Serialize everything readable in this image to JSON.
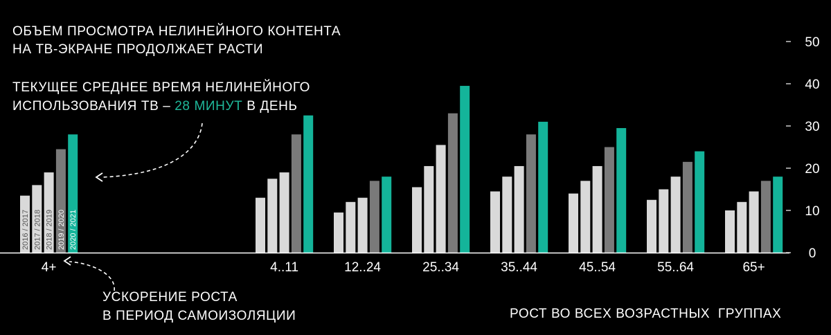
{
  "headline": {
    "line1": "ОБЪЕМ ПРОСМОТРА НЕЛИНЕЙНОГО КОНТЕНТА",
    "line2": "НА ТВ-ЭКРАНЕ ПРОДОЛЖАЕТ РАСТИ"
  },
  "subhead": {
    "line1": "ТЕКУЩЕЕ СРЕДНЕЕ ВРЕМЯ НЕЛИНЕЙНОГО",
    "line2_prefix": "ИСПОЛЬЗОВАНИЯ ТВ – ",
    "line2_highlight": "28 МИНУТ",
    "line2_suffix": " В ДЕНЬ"
  },
  "notes": {
    "bottom_line1": "УСКОРЕНИЕ РОСТА",
    "bottom_line2": "В ПЕРИОД САМОИЗОЛЯЦИИ",
    "right": "РОСТ ВО ВСЕХ ВОЗРАСТНЫХ  ГРУППАХ"
  },
  "colors": {
    "background": "#000000",
    "bar_light": "#d9d9d9",
    "bar_dark": "#7a7a7a",
    "bar_accent": "#14b49a",
    "axis": "#ffffff",
    "text": "#ffffff",
    "accent_text": "#1fb89a"
  },
  "chart_data": {
    "type": "bar",
    "categories": [
      "4+",
      "4..11",
      "12..24",
      "25..34",
      "35..44",
      "45..54",
      "55..64",
      "65+"
    ],
    "series": [
      {
        "name": "2016 / 2017",
        "values": [
          13.5,
          13,
          9.5,
          15.5,
          14.5,
          14,
          12.5,
          10
        ]
      },
      {
        "name": "2017 / 2018",
        "values": [
          16,
          17.5,
          12,
          20.5,
          18,
          17,
          15,
          12
        ]
      },
      {
        "name": "2018 / 2019",
        "values": [
          19,
          19,
          13,
          25.5,
          20.5,
          20.5,
          18,
          14.5
        ]
      },
      {
        "name": "2019 / 2020",
        "values": [
          24.5,
          28,
          17,
          33,
          28,
          25,
          21.5,
          17
        ]
      },
      {
        "name": "2020 / 2021",
        "values": [
          28,
          32.5,
          18,
          39.5,
          31,
          29.5,
          24,
          18
        ]
      }
    ],
    "yticks": [
      0,
      10,
      20,
      30,
      40,
      50
    ],
    "ylim": [
      0,
      50
    ],
    "y_axis_position": "right",
    "legend": "inside first group bars (vertical labels)",
    "grid": false
  }
}
